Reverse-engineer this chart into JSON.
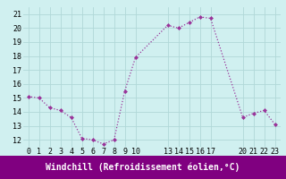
{
  "x": [
    0,
    1,
    2,
    3,
    4,
    5,
    6,
    7,
    8,
    9,
    10,
    13,
    14,
    15,
    16,
    17,
    20,
    21,
    22,
    23
  ],
  "y": [
    15.1,
    15.0,
    14.3,
    14.1,
    13.6,
    12.1,
    12.0,
    11.7,
    12.0,
    15.5,
    17.9,
    20.2,
    20.0,
    20.4,
    20.8,
    20.7,
    13.6,
    13.9,
    14.1,
    13.1
  ],
  "line_color": "#993399",
  "marker_color": "#993399",
  "bg_color": "#d0f0f0",
  "grid_color": "#b0d8d8",
  "xlabel": "Windchill (Refroidissement éolien,°C)",
  "xlabel_bg": "#800080",
  "xlabel_fg": "#ffffff",
  "ylim": [
    11.5,
    21.5
  ],
  "xlim": [
    -0.5,
    23.5
  ],
  "yticks": [
    12,
    13,
    14,
    15,
    16,
    17,
    18,
    19,
    20,
    21
  ],
  "xticks": [
    0,
    1,
    2,
    3,
    4,
    5,
    6,
    7,
    8,
    9,
    10,
    13,
    14,
    15,
    16,
    17,
    20,
    21,
    22,
    23
  ],
  "tick_fontsize": 6,
  "xlabel_fontsize": 7
}
